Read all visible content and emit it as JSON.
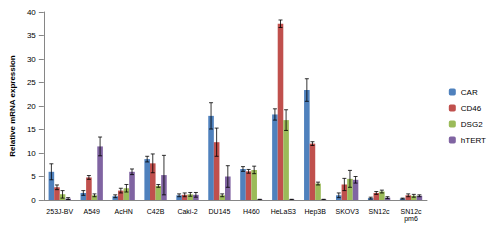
{
  "chart_data": {
    "type": "bar",
    "y_label": "Relative mRNA expression",
    "categories": [
      "253J-BV",
      "A549",
      "AcHN",
      "C42B",
      "Caki-2",
      "DU145",
      "H460",
      "HeLaS3",
      "Hep3B",
      "SKOV3",
      "SN12c",
      "SN12c pm6"
    ],
    "series": [
      {
        "name": "CAR",
        "color": "#4f81bd",
        "values": [
          6.0,
          1.5,
          0.8,
          8.7,
          1.0,
          17.9,
          6.6,
          18.2,
          23.4,
          1.0,
          0.4,
          0.3
        ],
        "errors": [
          1.7,
          0.5,
          0.3,
          0.6,
          0.3,
          2.8,
          0.5,
          1.2,
          2.4,
          0.5,
          0.2,
          0.1
        ]
      },
      {
        "name": "CD46",
        "color": "#c0504d",
        "values": [
          2.7,
          4.8,
          2.0,
          7.8,
          1.1,
          12.3,
          6.1,
          37.5,
          12.0,
          3.3,
          1.5,
          1.0
        ],
        "errors": [
          0.5,
          0.4,
          0.5,
          2.0,
          0.4,
          3.0,
          0.4,
          0.8,
          0.4,
          1.3,
          0.3,
          0.3
        ]
      },
      {
        "name": "DSG2",
        "color": "#9bbb59",
        "values": [
          1.2,
          1.0,
          2.5,
          3.0,
          1.2,
          1.0,
          6.4,
          17.0,
          3.5,
          4.5,
          1.8,
          0.9
        ],
        "errors": [
          0.8,
          0.3,
          0.8,
          0.3,
          0.4,
          0.3,
          0.8,
          2.2,
          0.3,
          1.8,
          0.3,
          0.3
        ]
      },
      {
        "name": "hTERT",
        "color": "#8064a2",
        "values": [
          0.3,
          11.4,
          6.0,
          5.3,
          1.1,
          5.0,
          0.1,
          0.1,
          0.1,
          4.3,
          0.5,
          0.9
        ],
        "errors": [
          0.2,
          2.0,
          0.6,
          4.2,
          0.5,
          2.3,
          0.05,
          0.05,
          0.05,
          0.7,
          0.2,
          0.2
        ]
      }
    ],
    "ylim": [
      0,
      40
    ],
    "yticks": [
      0,
      5,
      10,
      15,
      20,
      25,
      30,
      35,
      40
    ],
    "grid": false,
    "legend": "right"
  }
}
